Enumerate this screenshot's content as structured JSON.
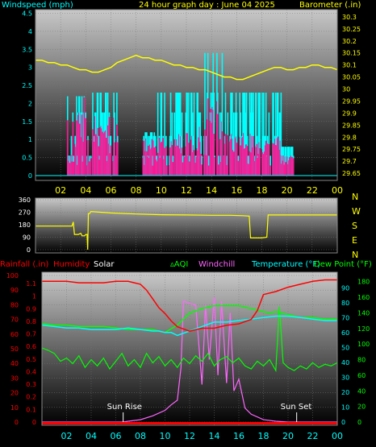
{
  "colors": {
    "windspeed": "#00FFFF",
    "gust": "#FF1493",
    "barometer": "#FFFF00",
    "direction": "#FFFF00",
    "rainfall": "#FF0000",
    "humidity": "#FF0000",
    "solar": "#FFFFFF",
    "aqi": "#00FF00",
    "windchill": "#FF66FF",
    "temperature": "#00FFFF",
    "dewpoint": "#00FF00",
    "bg_top": "#c8c8c8",
    "bg_bottom": "#000000"
  },
  "chart_data": [
    {
      "type": "bar",
      "title": "24 hour graph day : June 04 2025",
      "left_axis_label": "Windspeed (mph)",
      "right_axis_label": "Barometer (.in)",
      "x_ticks": [
        "02",
        "04",
        "06",
        "08",
        "10",
        "12",
        "14",
        "16",
        "18",
        "20",
        "22",
        "00"
      ],
      "y_left_ticks": [
        "4.5",
        "4",
        "3.5",
        "3",
        "2.5",
        "2",
        "1.5",
        "1",
        "0.5",
        "0"
      ],
      "y_right_ticks": [
        "30.3",
        "30.25",
        "30.2",
        "30.15",
        "30.1",
        "30.05",
        "30",
        "29.95",
        "29.9",
        "29.85",
        "29.8",
        "29.75",
        "29.7",
        "29.65"
      ],
      "ylim_left": [
        0,
        4.6
      ],
      "ylim_right": [
        29.62,
        30.33
      ],
      "x_range_hours": [
        0,
        24
      ],
      "series": [
        {
          "key": "barometer",
          "x": [
            0.0,
            0.5,
            1.0,
            1.5,
            2.0,
            2.5,
            3.0,
            3.5,
            4.0,
            4.5,
            5.0,
            5.5,
            6.0,
            6.5,
            7.0,
            7.5,
            8.0,
            8.5,
            9.0,
            9.5,
            10.0,
            10.5,
            11.0,
            11.5,
            12.0,
            12.5,
            13.0,
            13.5,
            14.0,
            14.5,
            15.0,
            15.5,
            16.0,
            16.5,
            17.0,
            17.5,
            18.0,
            18.5,
            19.0,
            19.5,
            20.0,
            20.5,
            21.0,
            21.5,
            22.0,
            22.5,
            23.0,
            23.5,
            24.0
          ],
          "values": [
            30.12,
            30.12,
            30.11,
            30.11,
            30.1,
            30.1,
            30.09,
            30.08,
            30.08,
            30.07,
            30.07,
            30.08,
            30.09,
            30.11,
            30.12,
            30.13,
            30.14,
            30.13,
            30.13,
            30.12,
            30.12,
            30.11,
            30.1,
            30.1,
            30.09,
            30.09,
            30.08,
            30.08,
            30.07,
            30.06,
            30.05,
            30.05,
            30.04,
            30.04,
            30.05,
            30.06,
            30.07,
            30.08,
            30.09,
            30.09,
            30.08,
            30.08,
            30.09,
            30.09,
            30.1,
            30.1,
            30.09,
            30.09,
            30.08
          ]
        }
      ],
      "wind_activity": [
        {
          "from": 2.5,
          "to": 4.0,
          "speed_max": 2.2,
          "gust_max": 2.3
        },
        {
          "from": 4.0,
          "to": 4.5,
          "speed_max": 4.6,
          "gust_max": 2.3
        },
        {
          "from": 4.5,
          "to": 6.5,
          "speed_max": 2.3,
          "gust_max": 1.9
        },
        {
          "from": 8.5,
          "to": 9.5,
          "speed_max": 1.2,
          "gust_max": 1.1
        },
        {
          "from": 9.5,
          "to": 13.0,
          "speed_max": 2.3,
          "gust_max": 1.2
        },
        {
          "from": 13.0,
          "to": 15.0,
          "speed_max": 3.4,
          "gust_max": 2.3
        },
        {
          "from": 15.0,
          "to": 17.5,
          "speed_max": 2.3,
          "gust_max": 1.2
        },
        {
          "from": 17.5,
          "to": 19.5,
          "speed_max": 2.3,
          "gust_max": 1.1
        },
        {
          "from": 19.5,
          "to": 20.5,
          "speed_max": 0.8,
          "gust_max": 0.6
        }
      ]
    },
    {
      "type": "line",
      "left_ticks": [
        "360",
        "270",
        "180",
        "90",
        "0"
      ],
      "right_labels": [
        "N",
        "W",
        "S",
        "E",
        "N"
      ],
      "ylim": [
        0,
        360
      ],
      "x_range_hours": [
        0,
        24
      ],
      "series": [
        {
          "key": "direction",
          "x": [
            0.0,
            2.9,
            3.0,
            3.1,
            3.4,
            3.6,
            3.7,
            3.9,
            4.0,
            4.1,
            4.15,
            4.2,
            4.3,
            4.4,
            6.0,
            8.0,
            10.0,
            12.0,
            14.0,
            15.5,
            16.5,
            17.0,
            17.1,
            17.3,
            18.0,
            18.4,
            18.5,
            19.0,
            24.0
          ],
          "values": [
            170,
            170,
            200,
            110,
            110,
            118,
            100,
            100,
            110,
            110,
            0,
            260,
            260,
            275,
            265,
            257,
            252,
            250,
            248,
            248,
            245,
            242,
            85,
            85,
            85,
            90,
            250,
            250,
            250
          ]
        }
      ]
    },
    {
      "type": "line",
      "label_rainfall": "Rainfall (.in)",
      "label_humidity": "Humidity",
      "label_solar": "Solar",
      "label_aqi": "AQI",
      "label_windchill": "Windchill",
      "label_temperature": "Temperature (°F)",
      "label_dewpoint": "Dew Point (°F)",
      "sunrise_label": "Sun Rise",
      "sunset_label": "Sun Set",
      "sunrise_hour": 6.6,
      "sunset_hour": 20.7,
      "x_ticks": [
        "02",
        "04",
        "06",
        "08",
        "10",
        "12",
        "14",
        "16",
        "18",
        "20",
        "22",
        "00"
      ],
      "humidity_ticks": [
        "100",
        "90",
        "80",
        "70",
        "60",
        "50",
        "40",
        "30",
        "20",
        "10",
        "0"
      ],
      "rain_ticks": [
        "1.1",
        "1",
        "0.9",
        "0.8",
        "0.7",
        "0.6",
        "0.5",
        "0.4",
        "0.3",
        "0.2",
        "0.1",
        "0"
      ],
      "temp_ticks": [
        "90",
        "80",
        "70",
        "60",
        "50",
        "40",
        "30",
        "20",
        "10",
        "0"
      ],
      "solar_ticks": [
        "180",
        "160",
        "140",
        "120",
        "100",
        "80",
        "60",
        "40",
        "20",
        "0"
      ],
      "humidity_range": [
        0,
        100
      ],
      "temp_range": [
        0,
        95
      ],
      "solar_range": [
        0,
        190
      ],
      "x_range_hours": [
        0,
        24
      ],
      "series": [
        {
          "key": "humidity",
          "x": [
            0,
            1,
            2,
            3,
            4,
            5,
            6,
            7,
            7.5,
            8,
            8.5,
            9,
            9.5,
            10,
            10.5,
            11,
            12,
            13,
            14,
            15,
            16,
            17,
            17.5,
            18,
            19,
            20,
            21,
            22,
            23,
            24
          ],
          "values": [
            96,
            96,
            96,
            95,
            95,
            95,
            96,
            96,
            95,
            94,
            90,
            84,
            78,
            74,
            69,
            65,
            62,
            64,
            64,
            66,
            67,
            70,
            76,
            87,
            89,
            92,
            94,
            96,
            97,
            97
          ]
        },
        {
          "key": "temperature",
          "x": [
            0,
            1,
            2,
            3,
            4,
            5,
            6,
            7,
            8,
            9,
            9.5,
            10,
            10.5,
            11,
            12,
            13,
            14,
            15,
            16,
            17,
            18,
            19,
            20,
            21,
            22,
            23,
            24
          ],
          "values": [
            65,
            64,
            63,
            63,
            62,
            62,
            62,
            63,
            62,
            61,
            61,
            60,
            60,
            58,
            61,
            64,
            67,
            67,
            68,
            69,
            70,
            71,
            71,
            70,
            69,
            68,
            68
          ]
        },
        {
          "key": "dewpoint",
          "x": [
            0,
            1,
            2,
            3,
            4,
            5,
            6,
            7,
            8,
            9,
            10,
            11,
            12,
            13,
            14,
            15,
            16,
            17,
            18,
            18.5,
            19,
            19.5,
            20,
            21,
            22,
            23,
            24
          ],
          "values": [
            66,
            65,
            65,
            64,
            64,
            64,
            63,
            62,
            62,
            62,
            60,
            65,
            73,
            76,
            78,
            78,
            78,
            76,
            74,
            73,
            74,
            73,
            72,
            70,
            70,
            69,
            69
          ]
        },
        {
          "key": "aqi",
          "x": [
            0,
            0.5,
            1,
            1.5,
            2,
            2.5,
            3,
            3.5,
            4,
            4.5,
            5,
            5.5,
            6,
            6.5,
            7,
            7.5,
            8,
            8.5,
            9,
            9.5,
            10,
            10.5,
            11,
            11.5,
            12,
            12.5,
            13,
            13.5,
            14,
            14.5,
            15,
            15.5,
            16,
            16.5,
            17,
            17.5,
            18,
            18.5,
            19,
            19.3,
            19.6,
            20,
            20.5,
            21,
            21.5,
            22,
            22.5,
            23,
            23.5,
            24
          ],
          "values": [
            95,
            92,
            88,
            78,
            82,
            75,
            85,
            70,
            80,
            72,
            82,
            68,
            78,
            88,
            72,
            80,
            70,
            88,
            76,
            84,
            72,
            80,
            70,
            82,
            75,
            85,
            78,
            88,
            72,
            80,
            84,
            76,
            82,
            72,
            68,
            78,
            72,
            80,
            66,
            148,
            76,
            70,
            66,
            72,
            68,
            76,
            70,
            74,
            72,
            76
          ]
        },
        {
          "key": "solar",
          "x": [
            0,
            6.6,
            7,
            8,
            9,
            10,
            10.5,
            11,
            11.3,
            11.5,
            12,
            12.5,
            13,
            13.3,
            13.6,
            14,
            14.3,
            14.6,
            15,
            15.3,
            15.6,
            16,
            16.5,
            17,
            18,
            19,
            20,
            24
          ],
          "values": [
            0,
            0,
            1,
            3,
            8,
            15,
            22,
            28,
            70,
            155,
            152,
            150,
            48,
            150,
            80,
            160,
            60,
            155,
            50,
            140,
            40,
            55,
            18,
            10,
            3,
            1,
            0,
            0
          ]
        }
      ]
    }
  ]
}
